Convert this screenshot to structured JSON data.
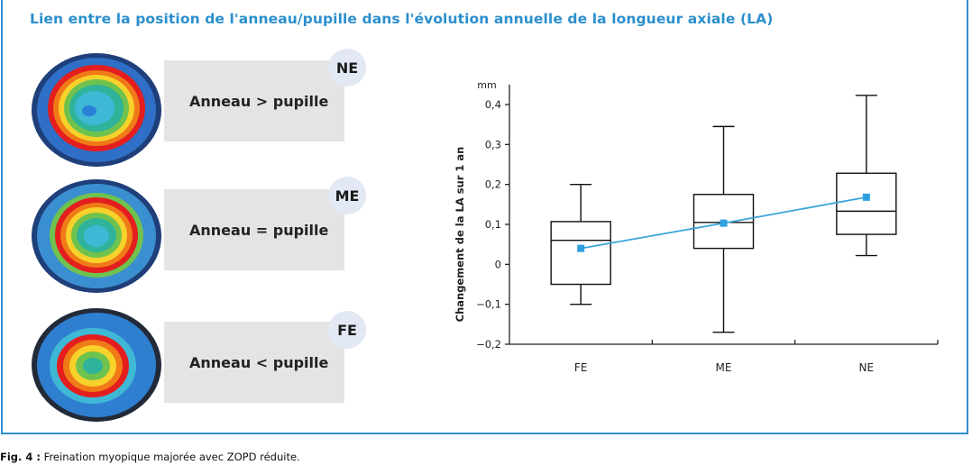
{
  "title": "Lien entre la position de l'anneau/pupille dans l'évolution annuelle de la longueur axiale (LA)",
  "panels": [
    {
      "badge": "NE",
      "label": "Anneau > pupille"
    },
    {
      "badge": "ME",
      "label": "Anneau = pupille"
    },
    {
      "badge": "FE",
      "label": "Anneau < pupille"
    }
  ],
  "colors": {
    "accent": "#2b8fcd",
    "series": "#3aa3dc",
    "marker": "#2ea0df"
  },
  "chart_data": {
    "type": "boxplot",
    "categories": [
      "FE",
      "ME",
      "NE"
    ],
    "ylabel": "Changement de la LA sur 1 an",
    "yunit": "mm",
    "ylim": [
      -0.2,
      0.4
    ],
    "yticks": [
      -0.2,
      -0.1,
      0,
      0.1,
      0.2,
      0.3,
      0.4
    ],
    "ytick_labels": [
      "−0,2",
      "−0,1",
      "0",
      "0,1",
      "0,2",
      "0,3",
      "0,4"
    ],
    "boxes": [
      {
        "category": "FE",
        "min": -0.1,
        "q1": -0.05,
        "median": 0.06,
        "q3": 0.107,
        "max": 0.2,
        "mean": 0.04
      },
      {
        "category": "ME",
        "min": -0.17,
        "q1": 0.04,
        "median": 0.105,
        "q3": 0.175,
        "max": 0.345,
        "mean": 0.103
      },
      {
        "category": "NE",
        "min": 0.022,
        "q1": 0.075,
        "median": 0.133,
        "q3": 0.228,
        "max": 0.423,
        "mean": 0.168
      }
    ],
    "grid": false
  },
  "caption": {
    "label": "Fig. 4 :",
    "text": " Freination myopique majorée avec ZOPD réduite."
  }
}
